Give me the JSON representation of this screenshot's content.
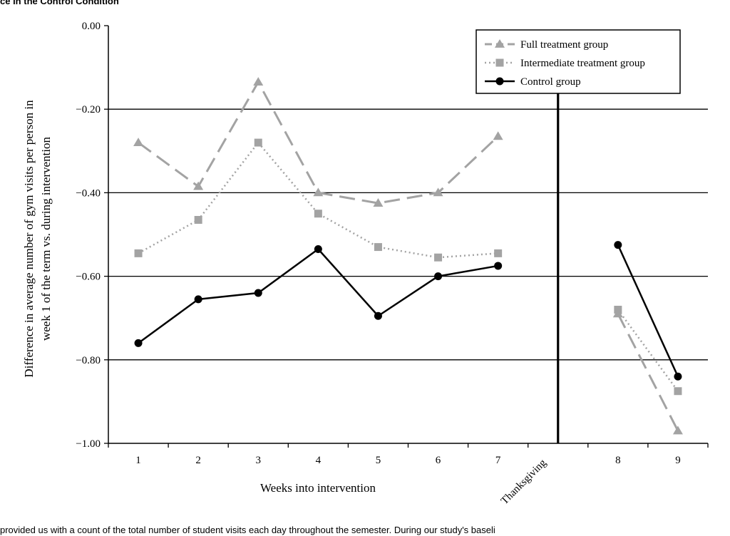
{
  "captions": {
    "top": "ce in the Control Condition",
    "bottom": "provided us with a count of the total number of student visits each day throughout the semester. During our study's baseli"
  },
  "colors": {
    "full": "#a3a3a3",
    "intermediate": "#a3a3a3",
    "control": "#000000"
  },
  "chart_data": {
    "type": "line",
    "ylabel_lines": [
      "Difference in average number of gym visits per person in",
      "week 1 of the term vs. during intervention"
    ],
    "xlabel": "Weeks into intervention",
    "ylim": [
      -1.0,
      0.0
    ],
    "y_ticks": [
      0.0,
      -0.2,
      -0.4,
      -0.6,
      -0.8,
      -1.0
    ],
    "y_tick_labels": [
      "0.00",
      "−0.20",
      "−0.40",
      "−0.60",
      "−0.80",
      "−1.00"
    ],
    "categories": [
      "1",
      "2",
      "3",
      "4",
      "5",
      "6",
      "7",
      "Thanksgiving",
      "8",
      "9"
    ],
    "grid": "horizontal",
    "legend_position": "top-right",
    "series": [
      {
        "name": "Full treatment group",
        "style": "dashed",
        "marker": "triangle",
        "values": [
          -0.28,
          -0.385,
          -0.135,
          -0.4,
          -0.425,
          -0.4,
          -0.265,
          null,
          -0.69,
          -0.97
        ]
      },
      {
        "name": "Intermediate treatment group",
        "style": "dotted",
        "marker": "square",
        "values": [
          -0.545,
          -0.465,
          -0.28,
          -0.45,
          -0.53,
          -0.555,
          -0.545,
          null,
          -0.68,
          -0.875
        ]
      },
      {
        "name": "Control group",
        "style": "solid",
        "marker": "circle",
        "values": [
          -0.76,
          -0.655,
          -0.64,
          -0.535,
          -0.695,
          -0.6,
          -0.575,
          null,
          -0.525,
          -0.84
        ]
      }
    ],
    "divider_after_category": "Thanksgiving"
  }
}
